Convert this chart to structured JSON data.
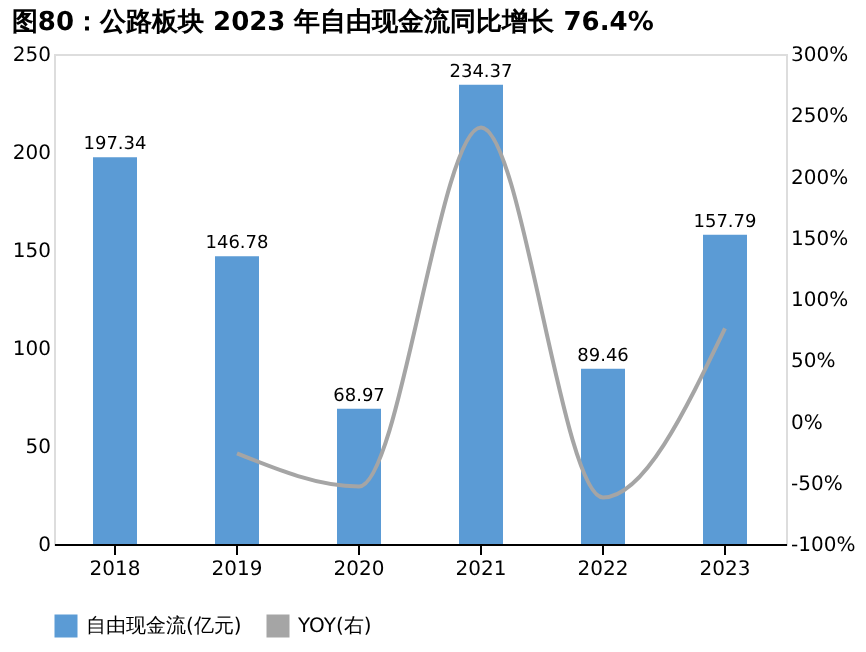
{
  "chart_data": {
    "type": "bar",
    "title": "图80：公路板块 2023 年自由现金流同比增长 76.4%",
    "categories": [
      "2018",
      "2019",
      "2020",
      "2021",
      "2022",
      "2023"
    ],
    "series": [
      {
        "name": "自由现金流(亿元)",
        "color": "#5b9bd5",
        "values": [
          197.34,
          146.78,
          68.97,
          234.37,
          89.46,
          157.79
        ],
        "value_labels": [
          "197.34",
          "146.78",
          "68.97",
          "234.37",
          "89.46",
          "157.79"
        ]
      },
      {
        "name": "YOY(右)",
        "type": "line",
        "axis": "y2",
        "color": "#a5a5a5",
        "values": [
          null,
          -26,
          -53,
          240,
          -62,
          76
        ],
        "line_style": "solid",
        "marker": "none"
      }
    ],
    "ylim": [
      0,
      250
    ],
    "yticks": [
      0,
      50,
      100,
      150,
      200,
      250
    ],
    "y2lim": [
      -100,
      300
    ],
    "y2ticks": [
      {
        "value": -100,
        "label": "-100%"
      },
      {
        "value": -50,
        "label": "-50%"
      },
      {
        "value": 0,
        "label": "0%"
      },
      {
        "value": 50,
        "label": "50%"
      },
      {
        "value": 100,
        "label": "100%"
      },
      {
        "value": 150,
        "label": "150%"
      },
      {
        "value": 200,
        "label": "200%"
      },
      {
        "value": 250,
        "label": "250%"
      },
      {
        "value": 300,
        "label": "300%"
      }
    ],
    "grid": false,
    "legend": "bottom"
  }
}
